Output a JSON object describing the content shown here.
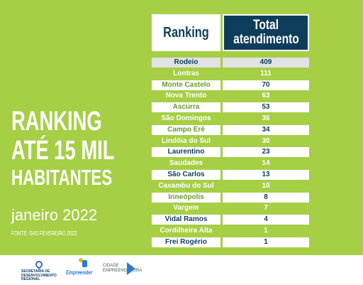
{
  "title": {
    "line1": "RANKING",
    "line2": "ATÉ 15 MIL",
    "line3": "HABITANTES"
  },
  "period": "janeiro 2022",
  "source": "FONTE: SAS FEVEREIRO 2022",
  "table": {
    "header_ranking": "Ranking",
    "header_total_line1": "Total",
    "header_total_line2": "atendimento",
    "rows": [
      {
        "city": "Rodeio",
        "value": "409"
      },
      {
        "city": "Lontras",
        "value": "111"
      },
      {
        "city": "Monte Castelo",
        "value": "70"
      },
      {
        "city": "Nova Trento",
        "value": "63"
      },
      {
        "city": "Ascurra",
        "value": "53"
      },
      {
        "city": "São Domingos",
        "value": "36"
      },
      {
        "city": "Campo Erê",
        "value": "34"
      },
      {
        "city": "Lindóia do Sul",
        "value": "30"
      },
      {
        "city": "Laurentino",
        "value": "23"
      },
      {
        "city": "Saudades",
        "value": "14"
      },
      {
        "city": "São Carlos",
        "value": "13"
      },
      {
        "city": "Caxambu do Sul",
        "value": "10"
      },
      {
        "city": "Irineópolis",
        "value": "8"
      },
      {
        "city": "Vargem",
        "value": "7"
      },
      {
        "city": "Vidal Ramos",
        "value": "4"
      },
      {
        "city": "Cordilheira Alta",
        "value": "1"
      },
      {
        "city": "Frei Rogério",
        "value": "1"
      }
    ]
  },
  "footer": {
    "logo1_text_line1": "SECRETARIA DE",
    "logo1_text_line2": "DESENVOLVIMENTO",
    "logo1_text_line3": "REGIONAL",
    "logo2_text": "Empreender",
    "logo3_text_line1": "CIDADE",
    "logo3_text_line2": "EMPREENDEDORA",
    "logo1_icon": "map-pin-icon",
    "logo2_icon": "person-icon",
    "logo3_icon": "arrow-right-icon"
  },
  "colors": {
    "background": "#a6cf45",
    "navy": "#0e3d5c",
    "white": "#ffffff"
  }
}
